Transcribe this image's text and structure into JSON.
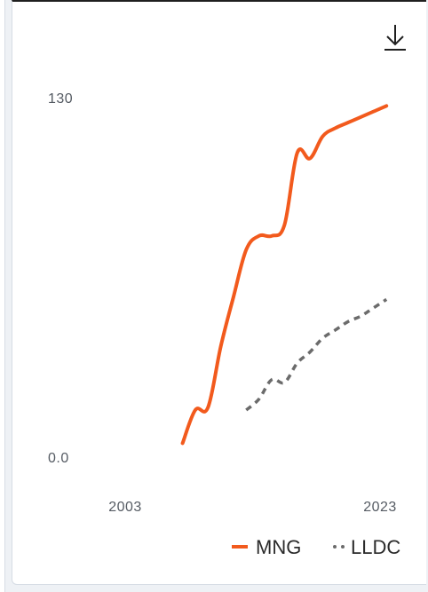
{
  "toolbar": {
    "download_icon": "download-icon"
  },
  "colors": {
    "mng": "#f25a1d",
    "lldc": "#6b6b6b",
    "axis_text": "#555b63"
  },
  "chart_data": {
    "type": "line",
    "title": "",
    "xlabel": "",
    "ylabel": "",
    "xlim": [
      2003,
      2023
    ],
    "ylim": [
      0,
      130
    ],
    "y_tick_labels": [
      "130",
      "0.0"
    ],
    "x_tick_labels": [
      "2003",
      "2023"
    ],
    "grid": false,
    "legend_placement": "bottom-right",
    "series": [
      {
        "name": "MNG",
        "style": "solid",
        "x": [
          2007.5,
          2008.5,
          2009.5,
          2010.5,
          2011.5,
          2012.5,
          2013.5,
          2014.5,
          2015.5,
          2016.5,
          2017.5,
          2018.5,
          2019.5,
          2020.5,
          2021.5,
          2022.5,
          2023.5
        ],
        "y": [
          5,
          17,
          18,
          40,
          58,
          75,
          80,
          80,
          84,
          110,
          108,
          116,
          119,
          121,
          123,
          125,
          127
        ]
      },
      {
        "name": "LLDC",
        "style": "dotted",
        "x": [
          2012.5,
          2013.5,
          2014.5,
          2015.5,
          2016.5,
          2017.5,
          2018.5,
          2019.5,
          2020.5,
          2021.5,
          2022.5,
          2023.5
        ],
        "y": [
          17,
          21,
          28,
          27,
          34,
          38,
          43,
          46,
          49,
          51,
          54,
          57
        ]
      }
    ]
  }
}
